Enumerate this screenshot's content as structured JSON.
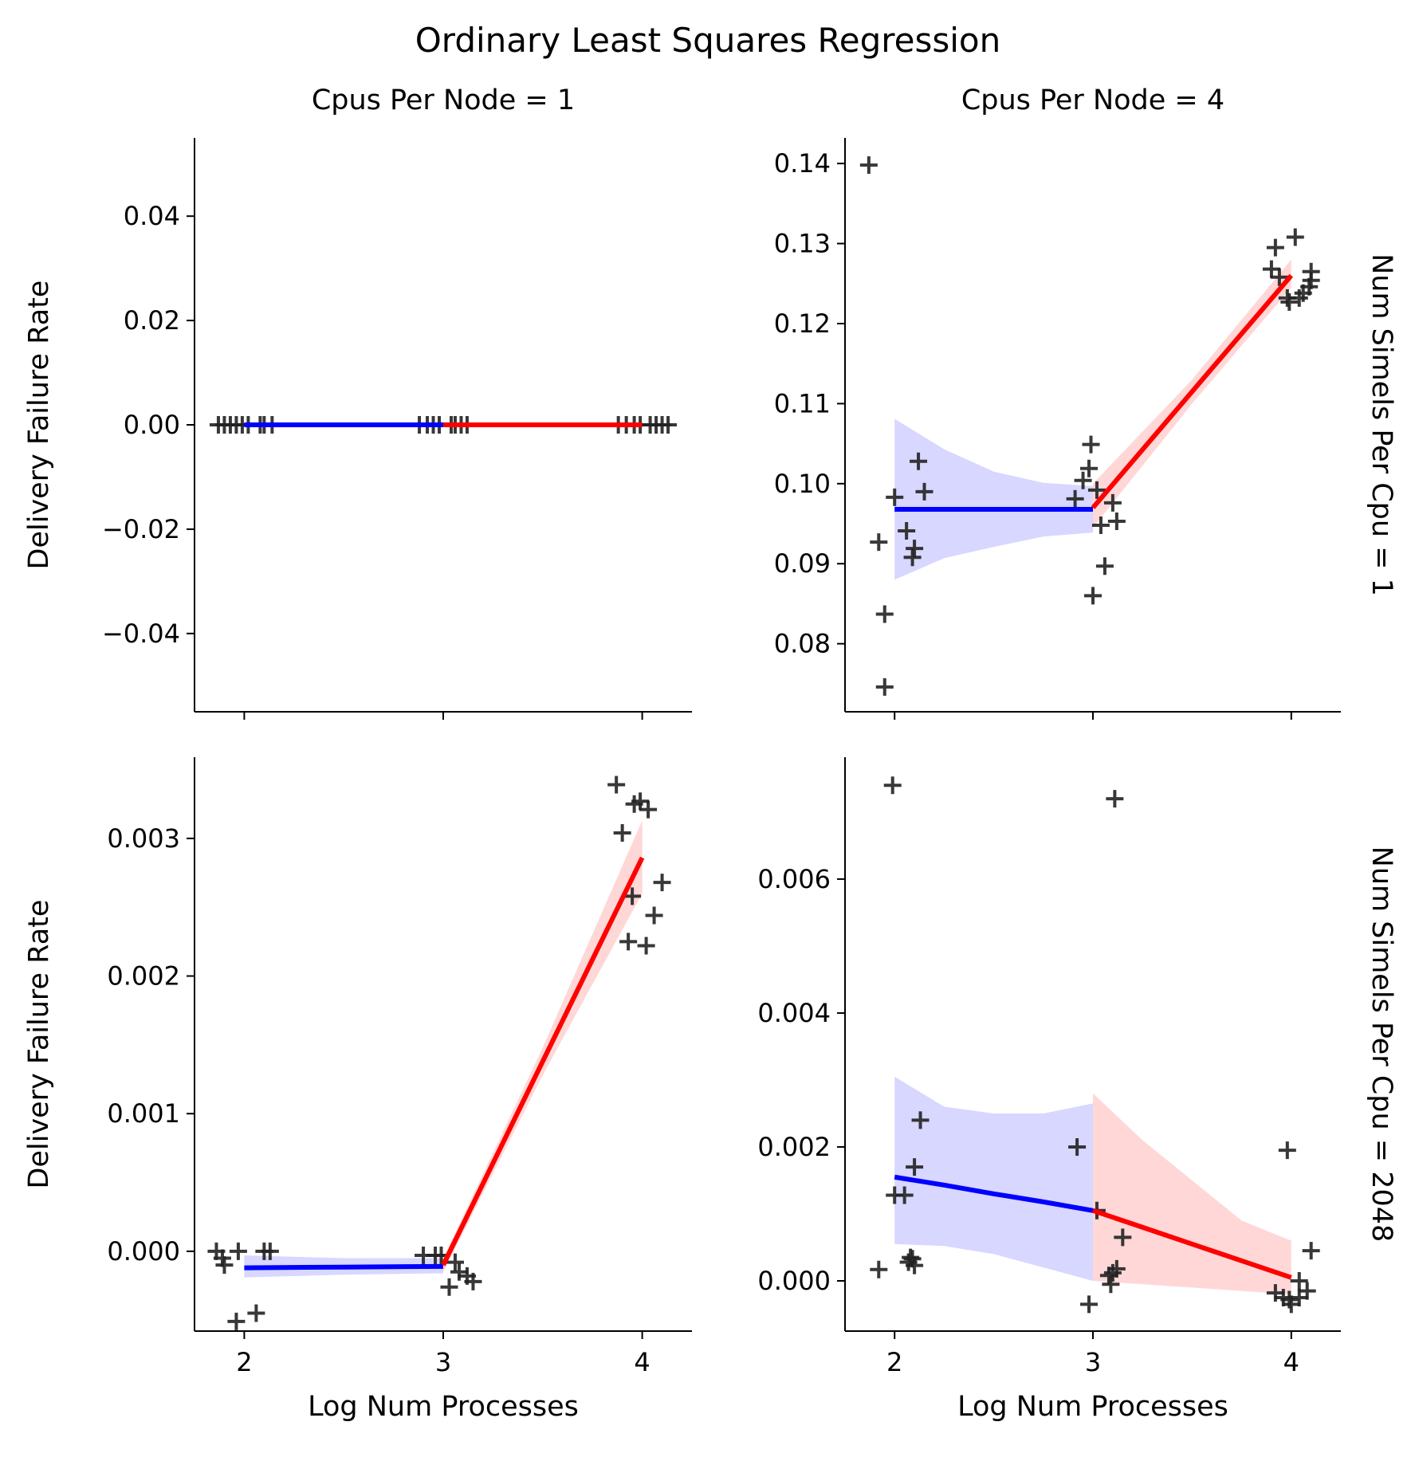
{
  "chart_data": {
    "type": "scatter",
    "title": "Ordinary Least Squares Regression",
    "xlabel": "Log Num Processes",
    "ylabel": "Delivery Failure Rate",
    "colors": {
      "points": "#222222",
      "fit_low": "#0000ff",
      "fit_high": "#ff0000",
      "band_low": "#d0d0ff",
      "band_high": "#ffd0d0"
    },
    "panels": [
      {
        "col_label": "Cpus Per Node = 1",
        "row_label": "",
        "ylim": [
          -0.055,
          0.055
        ],
        "xlim": [
          1.75,
          4.25
        ],
        "yticks": [
          {
            "value": 0.04,
            "label": "0.04"
          },
          {
            "value": 0.02,
            "label": "0.02"
          },
          {
            "value": 0.0,
            "label": "0.00"
          },
          {
            "value": -0.02,
            "label": "−0.02"
          },
          {
            "value": -0.04,
            "label": "−0.04"
          }
        ],
        "xticks": [],
        "points": [
          [
            1.87,
            0
          ],
          [
            1.9,
            0
          ],
          [
            1.93,
            0
          ],
          [
            1.96,
            0
          ],
          [
            1.99,
            0
          ],
          [
            2.02,
            0
          ],
          [
            2.08,
            0
          ],
          [
            2.1,
            0
          ],
          [
            2.14,
            0
          ],
          [
            2.88,
            0
          ],
          [
            2.92,
            0
          ],
          [
            2.95,
            0
          ],
          [
            2.98,
            0
          ],
          [
            3.04,
            0
          ],
          [
            3.06,
            0
          ],
          [
            3.09,
            0
          ],
          [
            3.12,
            0
          ],
          [
            3.88,
            0
          ],
          [
            3.92,
            0
          ],
          [
            3.96,
            0
          ],
          [
            3.99,
            0
          ],
          [
            4.04,
            0
          ],
          [
            4.07,
            0
          ],
          [
            4.1,
            0
          ],
          [
            4.13,
            0
          ]
        ],
        "fit_low": {
          "x": [
            2.0,
            3.0
          ],
          "y": [
            0.0,
            0.0
          ],
          "band_upper": [
            0.0,
            0.0
          ],
          "band_lower": [
            0.0,
            0.0
          ]
        },
        "fit_high": {
          "x": [
            3.0,
            4.0
          ],
          "y": [
            0.0,
            0.0
          ],
          "band_upper": [
            0.0,
            0.0
          ],
          "band_lower": [
            0.0,
            0.0
          ]
        }
      },
      {
        "col_label": "Cpus Per Node = 4",
        "row_label": "Num Simels Per Cpu = 1",
        "ylim": [
          0.0715,
          0.1432
        ],
        "xlim": [
          1.75,
          4.25
        ],
        "yticks": [
          {
            "value": 0.14,
            "label": "0.14"
          },
          {
            "value": 0.13,
            "label": "0.13"
          },
          {
            "value": 0.12,
            "label": "0.12"
          },
          {
            "value": 0.11,
            "label": "0.11"
          },
          {
            "value": 0.1,
            "label": "0.10"
          },
          {
            "value": 0.09,
            "label": "0.09"
          },
          {
            "value": 0.08,
            "label": "0.08"
          }
        ],
        "xticks": [],
        "points": [
          [
            1.87,
            0.1398
          ],
          [
            1.92,
            0.0927
          ],
          [
            1.95,
            0.0837
          ],
          [
            1.95,
            0.0746
          ],
          [
            2.0,
            0.0983
          ],
          [
            2.06,
            0.0941
          ],
          [
            2.09,
            0.0908
          ],
          [
            2.1,
            0.0919
          ],
          [
            2.12,
            0.1028
          ],
          [
            2.15,
            0.099
          ],
          [
            2.91,
            0.0981
          ],
          [
            2.95,
            0.1004
          ],
          [
            2.98,
            0.1019
          ],
          [
            2.99,
            0.1049
          ],
          [
            3.0,
            0.086
          ],
          [
            3.02,
            0.0992
          ],
          [
            3.04,
            0.0948
          ],
          [
            3.06,
            0.0897
          ],
          [
            3.1,
            0.0976
          ],
          [
            3.12,
            0.0953
          ],
          [
            3.9,
            0.1268
          ],
          [
            3.92,
            0.1295
          ],
          [
            3.94,
            0.1258
          ],
          [
            3.98,
            0.1232
          ],
          [
            3.99,
            0.1227
          ],
          [
            4.02,
            0.1308
          ],
          [
            4.04,
            0.1232
          ],
          [
            4.06,
            0.1238
          ],
          [
            4.09,
            0.1246
          ],
          [
            4.1,
            0.1265
          ],
          [
            4.1,
            0.1254
          ]
        ],
        "fit_low": {
          "x": [
            2.0,
            2.25,
            2.5,
            2.75,
            3.0
          ],
          "y": [
            0.0968,
            0.0968,
            0.0968,
            0.0968,
            0.0968
          ],
          "band_upper": [
            0.1081,
            0.1043,
            0.1015,
            0.1001,
            0.0997
          ],
          "band_lower": [
            0.088,
            0.0907,
            0.0921,
            0.0934,
            0.0939
          ]
        },
        "fit_high": {
          "x": [
            3.0,
            3.5,
            4.0
          ],
          "y": [
            0.097,
            0.1115,
            0.126
          ],
          "band_upper": [
            0.1,
            0.113,
            0.128
          ],
          "band_lower": [
            0.0945,
            0.11,
            0.1245
          ]
        }
      },
      {
        "col_label": "",
        "row_label": "",
        "ylim": [
          -0.00058,
          0.00359
        ],
        "xlim": [
          1.75,
          4.25
        ],
        "yticks": [
          {
            "value": 0.003,
            "label": "0.003"
          },
          {
            "value": 0.002,
            "label": "0.002"
          },
          {
            "value": 0.001,
            "label": "0.001"
          },
          {
            "value": 0.0,
            "label": "0.000"
          }
        ],
        "xticks": [
          {
            "value": 2,
            "label": "2"
          },
          {
            "value": 3,
            "label": "3"
          },
          {
            "value": 4,
            "label": "4"
          }
        ],
        "points": [
          [
            1.86,
            0.0
          ],
          [
            1.89,
            -5e-05
          ],
          [
            1.9,
            -0.0001
          ],
          [
            1.97,
            0.0
          ],
          [
            1.96,
            -0.00051
          ],
          [
            2.06,
            -0.00045
          ],
          [
            2.1,
            0.0
          ],
          [
            2.13,
            0.0
          ],
          [
            2.9,
            -3e-05
          ],
          [
            2.96,
            -3e-05
          ],
          [
            2.99,
            -3e-05
          ],
          [
            3.03,
            -0.00026
          ],
          [
            3.06,
            -8e-05
          ],
          [
            3.08,
            -0.00015
          ],
          [
            3.12,
            -0.00018
          ],
          [
            3.15,
            -0.00022
          ],
          [
            3.87,
            0.00339
          ],
          [
            3.9,
            0.00304
          ],
          [
            3.93,
            0.00225
          ],
          [
            3.95,
            0.00258
          ],
          [
            3.96,
            0.00325
          ],
          [
            3.99,
            0.00327
          ],
          [
            4.02,
            0.00222
          ],
          [
            4.03,
            0.00321
          ],
          [
            4.06,
            0.00244
          ],
          [
            4.1,
            0.00268
          ]
        ],
        "fit_low": {
          "x": [
            2.0,
            2.5,
            3.0
          ],
          "y": [
            -0.00012,
            -0.000115,
            -0.00011
          ],
          "band_upper": [
            -3e-05,
            -5e-05,
            -5e-05
          ],
          "band_lower": [
            -0.00019,
            -0.00017,
            -0.00016
          ]
        },
        "fit_high": {
          "x": [
            3.0,
            3.5,
            4.0
          ],
          "y": [
            -0.0001,
            0.00138,
            0.00286
          ],
          "band_upper": [
            -5e-05,
            0.00148,
            0.00313
          ],
          "band_lower": [
            -0.00015,
            0.00128,
            0.0026
          ]
        }
      },
      {
        "col_label": "",
        "row_label": "Num Simels Per Cpu = 2048",
        "ylim": [
          -0.00075,
          0.00782
        ],
        "xlim": [
          1.75,
          4.25
        ],
        "yticks": [
          {
            "value": 0.006,
            "label": "0.006"
          },
          {
            "value": 0.004,
            "label": "0.004"
          },
          {
            "value": 0.002,
            "label": "0.002"
          },
          {
            "value": 0.0,
            "label": "0.000"
          }
        ],
        "xticks": [
          {
            "value": 2,
            "label": "2"
          },
          {
            "value": 3,
            "label": "3"
          },
          {
            "value": 4,
            "label": "4"
          }
        ],
        "points": [
          [
            1.92,
            0.00017
          ],
          [
            1.99,
            0.0074
          ],
          [
            2.0,
            0.00128
          ],
          [
            2.05,
            0.00128
          ],
          [
            2.07,
            0.00028
          ],
          [
            2.08,
            0.00035
          ],
          [
            2.09,
            0.00033
          ],
          [
            2.1,
            0.00023
          ],
          [
            2.1,
            0.0017
          ],
          [
            2.13,
            0.0024
          ],
          [
            2.92,
            0.002
          ],
          [
            2.98,
            -0.00035
          ],
          [
            3.02,
            0.00105
          ],
          [
            3.08,
            8e-05
          ],
          [
            3.09,
            -5e-05
          ],
          [
            3.1,
            0.00012
          ],
          [
            3.11,
            0.0072
          ],
          [
            3.12,
            0.00018
          ],
          [
            3.15,
            0.00065
          ],
          [
            3.92,
            -0.00018
          ],
          [
            3.96,
            -0.00025
          ],
          [
            3.98,
            0.00195
          ],
          [
            3.99,
            -0.00028
          ],
          [
            4.0,
            -0.00035
          ],
          [
            4.04,
            -0.00025
          ],
          [
            4.04,
            0.0
          ],
          [
            4.08,
            -0.00015
          ],
          [
            4.1,
            0.00045
          ]
        ],
        "fit_low": {
          "x": [
            2.0,
            2.25,
            2.5,
            2.75,
            3.0
          ],
          "y": [
            0.00155,
            0.00143,
            0.0013,
            0.00118,
            0.00105
          ],
          "band_upper": [
            0.00305,
            0.0026,
            0.0025,
            0.0025,
            0.00265
          ],
          "band_lower": [
            0.00055,
            0.00052,
            0.0004,
            0.0002,
            0.0
          ]
        },
        "fit_high": {
          "x": [
            3.0,
            3.25,
            3.5,
            3.75,
            4.0
          ],
          "y": [
            0.00105,
            0.0008,
            0.00055,
            0.0003,
            5e-05
          ],
          "band_upper": [
            0.0028,
            0.0021,
            0.0015,
            0.0009,
            0.0006
          ],
          "band_lower": [
            0.0,
            -5e-05,
            -0.0001,
            -0.00015,
            -0.0002
          ]
        }
      }
    ]
  }
}
